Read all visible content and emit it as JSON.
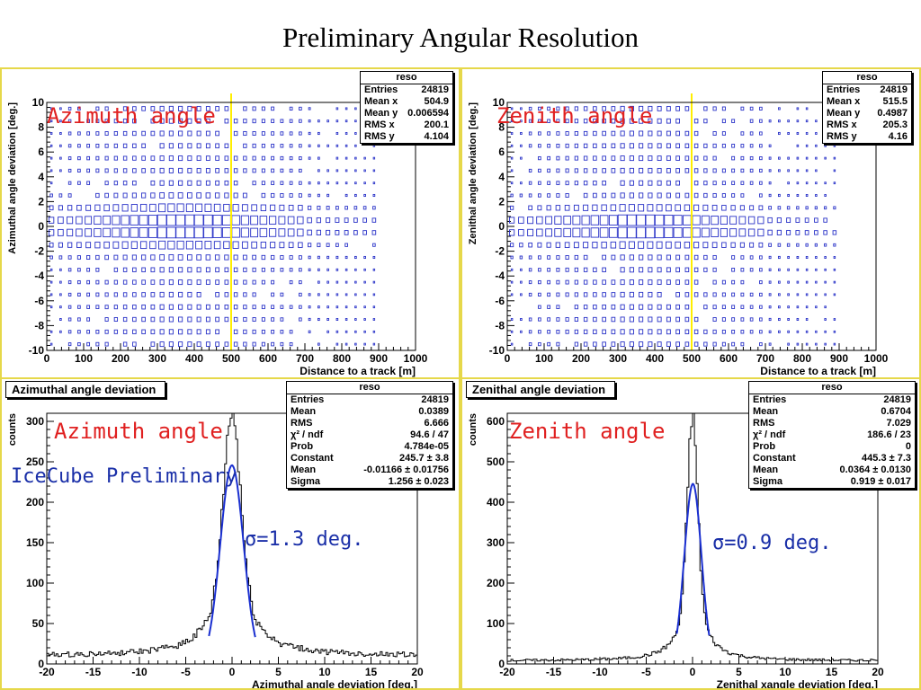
{
  "title": "Preliminary Angular Resolution",
  "colors": {
    "border": "#e6d84a",
    "box": "#2a33c8",
    "cutline": "#ffee00",
    "fit": "#1a2fd0",
    "overlay_red": "#e02020",
    "overlay_blue": "#1a2fa8"
  },
  "panels": {
    "top_left": {
      "overlay_label": "Azimuth angle",
      "stats": {
        "title": "reso",
        "rows": [
          [
            "Entries",
            "24819"
          ],
          [
            "Mean x",
            "504.9"
          ],
          [
            "Mean y",
            "0.006594"
          ],
          [
            "RMS x",
            "200.1"
          ],
          [
            "RMS y",
            "4.104"
          ]
        ]
      }
    },
    "top_right": {
      "overlay_label": "Zenith angle",
      "stats": {
        "title": "reso",
        "rows": [
          [
            "Entries",
            "24819"
          ],
          [
            "Mean x",
            "515.5"
          ],
          [
            "Mean y",
            "0.4987"
          ],
          [
            "RMS x",
            "205.3"
          ],
          [
            "RMS y",
            "4.16"
          ]
        ]
      }
    },
    "bottom_left": {
      "hist_title": "Azimuthal angle deviation",
      "overlay_label": "Azimuth angle",
      "preliminary": "IceCube Preliminary",
      "sigma_text": "σ=1.3 deg.",
      "stats": {
        "title": "reso",
        "rows": [
          [
            "Entries",
            "24819"
          ],
          [
            "Mean",
            "0.0389"
          ],
          [
            "RMS",
            "6.666"
          ],
          [
            "χ² / ndf",
            "94.6 / 47"
          ],
          [
            "Prob",
            "4.784e-05"
          ],
          [
            "Constant",
            "245.7 ± 3.8"
          ],
          [
            "Mean",
            "-0.01166 ± 0.01756"
          ],
          [
            "Sigma",
            "1.256 ± 0.023"
          ]
        ]
      }
    },
    "bottom_right": {
      "hist_title": "Zenithal angle deviation",
      "overlay_label": "Zenith angle",
      "sigma_text": "σ=0.9 deg.",
      "stats": {
        "title": "reso",
        "rows": [
          [
            "Entries",
            "24819"
          ],
          [
            "Mean",
            "0.6704"
          ],
          [
            "RMS",
            "7.029"
          ],
          [
            "χ² / ndf",
            "186.6 / 23"
          ],
          [
            "Prob",
            "0"
          ],
          [
            "Constant",
            "445.3 ± 7.3"
          ],
          [
            "Mean",
            "0.0364 ± 0.0130"
          ],
          [
            "Sigma",
            "0.919 ± 0.017"
          ]
        ]
      }
    }
  },
  "chart_data": [
    {
      "type": "heatmap",
      "name": "reso",
      "xlabel": "Distance to a track [m]",
      "ylabel": "Azimuthal angle deviation [deg.]",
      "xlim": [
        0,
        1000
      ],
      "ylim": [
        -10,
        10
      ],
      "xticks": [
        0,
        100,
        200,
        300,
        400,
        500,
        600,
        700,
        800,
        900,
        1000
      ],
      "yticks": [
        -10,
        -8,
        -6,
        -4,
        -2,
        0,
        2,
        4,
        6,
        8,
        10
      ],
      "cut_x": 500,
      "xmax_data": 900,
      "sigma_y": 1.5
    },
    {
      "type": "heatmap",
      "name": "reso",
      "xlabel": "Distance to a track [m]",
      "ylabel": "Zenithal angle deviation [deg.]",
      "xlim": [
        0,
        1000
      ],
      "ylim": [
        -10,
        10
      ],
      "xticks": [
        0,
        100,
        200,
        300,
        400,
        500,
        600,
        700,
        800,
        900,
        1000
      ],
      "yticks": [
        -10,
        -8,
        -6,
        -4,
        -2,
        0,
        2,
        4,
        6,
        8,
        10
      ],
      "cut_x": 500,
      "xmax_data": 900,
      "sigma_y": 1.2
    },
    {
      "type": "line",
      "name": "reso",
      "xlabel": "Azimuthal angle deviation [deg.]",
      "ylabel": "counts",
      "xlim": [
        -20,
        20
      ],
      "ylim": [
        0,
        310
      ],
      "xticks": [
        -20,
        -15,
        -10,
        -5,
        0,
        5,
        10,
        15,
        20
      ],
      "yticks": [
        0,
        50,
        100,
        150,
        200,
        250,
        300
      ],
      "hist": {
        "peak": 300,
        "core_sigma": 0.9,
        "tail_amp": 90,
        "tail_width": 5.5,
        "base": 10,
        "bins": 200
      },
      "fit": {
        "constant": 245.7,
        "mean": -0.01166,
        "sigma": 1.256,
        "range": [
          -2.5,
          2.5
        ]
      }
    },
    {
      "type": "line",
      "name": "reso",
      "xlabel": "Zenithal xangle deviation [deg.]",
      "ylabel": "counts",
      "xlim": [
        -20,
        20
      ],
      "ylim": [
        0,
        620
      ],
      "xticks": [
        -20,
        -15,
        -10,
        -5,
        0,
        5,
        10,
        15,
        20
      ],
      "yticks": [
        0,
        100,
        200,
        300,
        400,
        500,
        600
      ],
      "hist": {
        "peak": 605,
        "core_sigma": 0.55,
        "tail_amp": 150,
        "tail_width": 3.5,
        "base": 8,
        "bins": 200
      },
      "fit": {
        "constant": 445.3,
        "mean": 0.0364,
        "sigma": 0.919,
        "range": [
          -1.7,
          1.8
        ]
      }
    }
  ]
}
